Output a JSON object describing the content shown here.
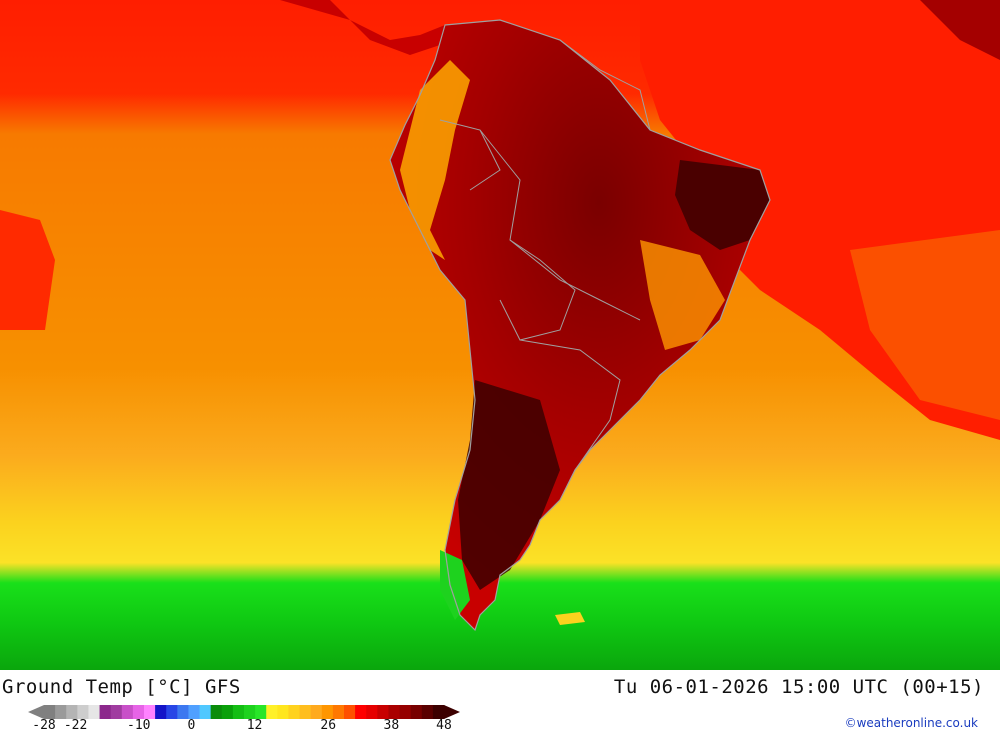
{
  "map": {
    "region": "South America",
    "colors": {
      "ocean_far_north": "#ff1e00",
      "ocean_mid": "#f77a00",
      "ocean_light": "#fbab1d",
      "ocean_yellow": "#fbe227",
      "ocean_green_light": "#19e01a",
      "ocean_green": "#0fc812",
      "land_hot": "#a40000",
      "land_very_hot": "#520000",
      "land_warm": "#e40000",
      "andes": "#ffa800",
      "border_line": "#a0a0a0"
    }
  },
  "footer": {
    "title": "Ground Temp [°C] GFS",
    "timestamp": "Tu 06-01-2026 15:00 UTC (00+15)",
    "credit": "©weatheronline.co.uk"
  },
  "legend": {
    "ticks": [
      "-28",
      "-22",
      "-10",
      "0",
      "12",
      "26",
      "38",
      "48"
    ],
    "tick_values": [
      -28,
      -22,
      -10,
      0,
      12,
      26,
      38,
      48
    ],
    "colors": [
      "#808080",
      "#9a9a9a",
      "#b4b4b4",
      "#cdcdcd",
      "#e6e6e6",
      "#8c288c",
      "#a03ca0",
      "#c850c8",
      "#e664e6",
      "#ff82ff",
      "#1414c8",
      "#2846e6",
      "#3c78f0",
      "#50a0ff",
      "#50c8ff",
      "#0a8c0a",
      "#0aa00a",
      "#14be14",
      "#1ed21e",
      "#28e628",
      "#fff028",
      "#ffe61e",
      "#ffd21e",
      "#ffbe1e",
      "#ffaa1e",
      "#ff9600",
      "#ff7800",
      "#ff5000",
      "#ff0000",
      "#e60000",
      "#c80000",
      "#aa0000",
      "#960000",
      "#780000",
      "#5a0000",
      "#3c0000"
    ]
  }
}
